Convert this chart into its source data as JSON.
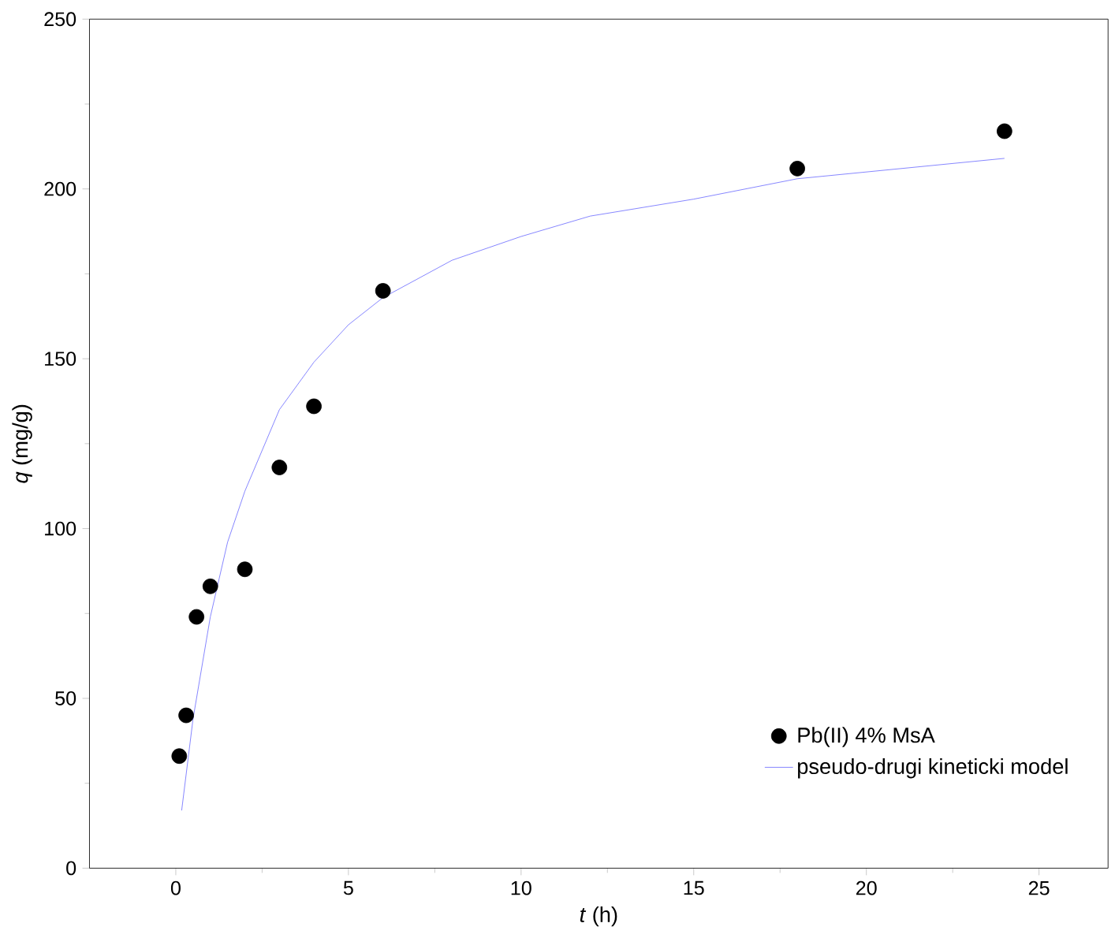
{
  "chart_data": {
    "type": "scatter",
    "xlabel": "*t* (h)",
    "ylabel": "*q* (mg/g)",
    "xlim": [
      -2.5,
      27
    ],
    "ylim": [
      0,
      250
    ],
    "xticks": [
      0,
      5,
      10,
      15,
      20,
      25
    ],
    "yticks": [
      0,
      50,
      100,
      150,
      200,
      250
    ],
    "legend": "bottom right",
    "grid": false,
    "series": [
      {
        "name": "Pb(II) 4% MsA",
        "marker": "circle",
        "color": "#000000",
        "x": [
          0.1,
          0.3,
          0.6,
          1,
          2,
          3,
          4,
          6,
          18,
          24
        ],
        "values": [
          33,
          45,
          74,
          83,
          88,
          118,
          136,
          170,
          206,
          217
        ]
      },
      {
        "name": "pseudo-drugi kineticki model",
        "type": "line",
        "marker": "none",
        "line_style": "solid",
        "color": "#6f6fff",
        "x": [
          0.17,
          0.5,
          1,
          1.5,
          2,
          3,
          4,
          5,
          6,
          8,
          10,
          12,
          15,
          18,
          21,
          24
        ],
        "values": [
          17,
          44,
          74,
          96,
          111,
          135,
          149,
          160,
          168,
          179,
          186,
          192,
          197,
          203,
          206,
          209
        ]
      }
    ]
  }
}
